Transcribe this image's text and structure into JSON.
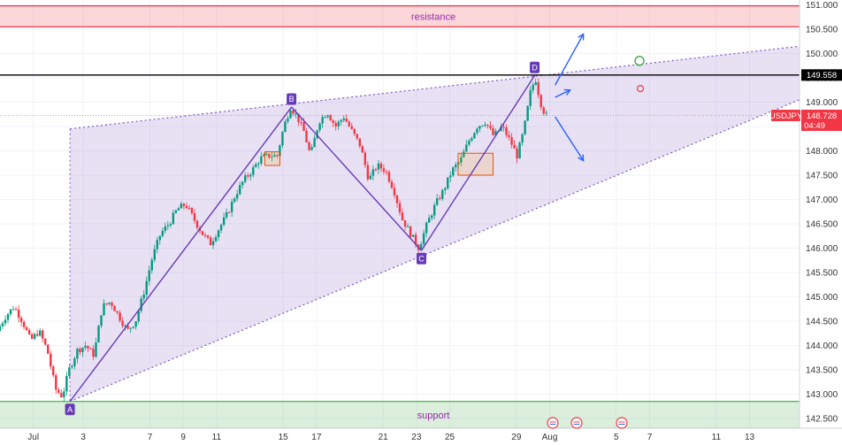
{
  "chart_data": {
    "type": "candlestick",
    "symbol": "USDJPY",
    "current_price": "148.728",
    "countdown": "04:49",
    "level_price": "149.558",
    "level_value": 149.558,
    "ylim": [
      142.3,
      151.1
    ],
    "xlim": [
      0,
      48
    ],
    "y_ticks": [
      "151.000",
      "150.500",
      "150.000",
      "149.500",
      "149.000",
      "148.500",
      "148.000",
      "147.500",
      "147.000",
      "146.500",
      "146.000",
      "145.500",
      "145.000",
      "144.500",
      "144.000",
      "143.500",
      "143.000",
      "142.500"
    ],
    "x_ticks": [
      {
        "label": "Jul",
        "x": 2
      },
      {
        "label": "3",
        "x": 5
      },
      {
        "label": "7",
        "x": 9
      },
      {
        "label": "9",
        "x": 11
      },
      {
        "label": "11",
        "x": 13
      },
      {
        "label": "15",
        "x": 17
      },
      {
        "label": "17",
        "x": 19
      },
      {
        "label": "21",
        "x": 23
      },
      {
        "label": "23",
        "x": 25
      },
      {
        "label": "25",
        "x": 27
      },
      {
        "label": "29",
        "x": 31
      },
      {
        "label": "Aug",
        "x": 33
      },
      {
        "label": "5",
        "x": 37
      },
      {
        "label": "7",
        "x": 39
      },
      {
        "label": "11",
        "x": 43
      },
      {
        "label": "13",
        "x": 45
      }
    ],
    "zones": [
      {
        "label": "resistance",
        "from": 150.55,
        "to": 150.98,
        "color": "#f23645"
      },
      {
        "label": "support",
        "from": 142.3,
        "to": 142.85,
        "color": "#4caf50"
      }
    ],
    "wave_points": [
      {
        "label": "A",
        "x": 4.2,
        "y": 142.85
      },
      {
        "label": "B",
        "x": 17.5,
        "y": 148.9
      },
      {
        "label": "C",
        "x": 25.3,
        "y": 145.95
      },
      {
        "label": "D",
        "x": 32.1,
        "y": 149.55
      }
    ],
    "triangle": {
      "upper": [
        {
          "x": 4.2,
          "y": 148.45
        },
        {
          "x": 48,
          "y": 150.15
        }
      ],
      "lower": [
        {
          "x": 4.2,
          "y": 142.85
        },
        {
          "x": 48,
          "y": 149.05
        }
      ]
    },
    "boxes": [
      {
        "x1": 15.9,
        "x2": 16.8,
        "y1": 147.7,
        "y2": 147.98
      },
      {
        "x1": 27.5,
        "x2": 29.6,
        "y1": 147.5,
        "y2": 147.95
      }
    ],
    "close_path": [
      [
        0.0,
        144.3
      ],
      [
        0.5,
        144.6
      ],
      [
        1.0,
        144.8
      ],
      [
        1.5,
        144.5
      ],
      [
        2.0,
        144.1
      ],
      [
        2.5,
        144.3
      ],
      [
        3.0,
        143.9
      ],
      [
        3.5,
        143.1
      ],
      [
        3.9,
        142.95
      ],
      [
        4.3,
        143.5
      ],
      [
        4.8,
        143.9
      ],
      [
        5.3,
        144.0
      ],
      [
        5.8,
        143.8
      ],
      [
        6.3,
        144.8
      ],
      [
        6.8,
        144.9
      ],
      [
        7.3,
        144.6
      ],
      [
        7.8,
        144.3
      ],
      [
        8.3,
        144.5
      ],
      [
        8.8,
        145.1
      ],
      [
        9.3,
        145.8
      ],
      [
        9.8,
        146.3
      ],
      [
        10.3,
        146.5
      ],
      [
        10.8,
        146.8
      ],
      [
        11.3,
        146.9
      ],
      [
        11.8,
        146.6
      ],
      [
        12.3,
        146.3
      ],
      [
        12.8,
        146.1
      ],
      [
        13.3,
        146.4
      ],
      [
        13.8,
        146.7
      ],
      [
        14.3,
        147.1
      ],
      [
        14.8,
        147.4
      ],
      [
        15.3,
        147.6
      ],
      [
        15.8,
        147.85
      ],
      [
        16.3,
        147.9
      ],
      [
        16.8,
        147.9
      ],
      [
        17.2,
        148.5
      ],
      [
        17.6,
        148.9
      ],
      [
        18.0,
        148.7
      ],
      [
        18.4,
        148.4
      ],
      [
        18.8,
        147.9
      ],
      [
        19.3,
        148.6
      ],
      [
        19.8,
        148.8
      ],
      [
        20.3,
        148.5
      ],
      [
        20.8,
        148.7
      ],
      [
        21.3,
        148.4
      ],
      [
        21.8,
        148.1
      ],
      [
        22.3,
        147.4
      ],
      [
        22.8,
        147.7
      ],
      [
        23.3,
        147.6
      ],
      [
        23.8,
        147.2
      ],
      [
        24.3,
        146.6
      ],
      [
        24.8,
        146.3
      ],
      [
        25.3,
        146.0
      ],
      [
        25.8,
        146.5
      ],
      [
        26.3,
        146.9
      ],
      [
        26.8,
        147.2
      ],
      [
        27.3,
        147.6
      ],
      [
        27.8,
        147.8
      ],
      [
        28.3,
        148.2
      ],
      [
        28.8,
        148.5
      ],
      [
        29.3,
        148.6
      ],
      [
        29.8,
        148.3
      ],
      [
        30.3,
        148.5
      ],
      [
        30.8,
        148.2
      ],
      [
        31.2,
        147.9
      ],
      [
        31.6,
        148.4
      ],
      [
        32.0,
        149.2
      ],
      [
        32.3,
        149.5
      ],
      [
        32.6,
        149.0
      ],
      [
        32.9,
        148.728
      ]
    ]
  }
}
